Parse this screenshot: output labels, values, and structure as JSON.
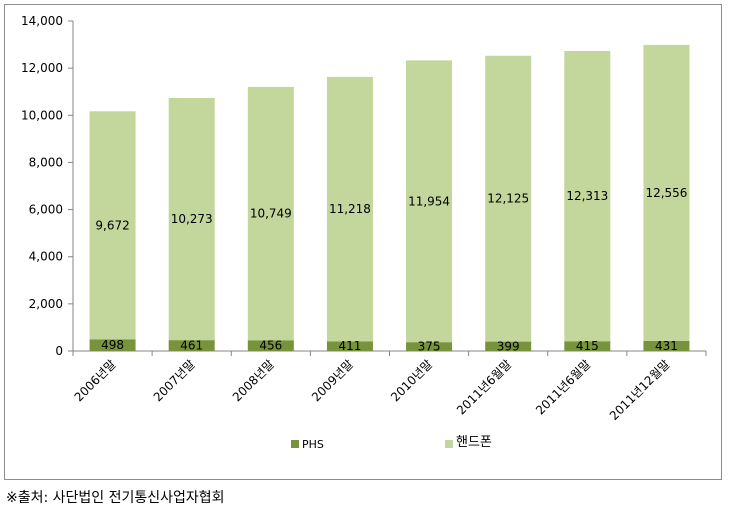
{
  "chart_data": {
    "type": "bar",
    "stacked": true,
    "categories": [
      "2006년말",
      "2007년말",
      "2008년말",
      "2009년말",
      "2010년말",
      "2011년6월말",
      "2011년6월말",
      "2011년12월말"
    ],
    "series": [
      {
        "name": "PHS",
        "values": [
          498,
          461,
          456,
          411,
          375,
          399,
          415,
          431
        ],
        "color": "#77933c"
      },
      {
        "name": "핸드폰",
        "values": [
          9672,
          10273,
          10749,
          11218,
          11954,
          12125,
          12313,
          12556
        ],
        "color": "#c3d69b"
      }
    ],
    "data_labels": {
      "PHS": [
        "498",
        "461",
        "456",
        "411",
        "375",
        "399",
        "415",
        "431"
      ],
      "핸드폰": [
        "9,672",
        "10,273",
        "10,749",
        "11,218",
        "11,954",
        "12,125",
        "12,313",
        "12,556"
      ]
    },
    "yticks": [
      "0",
      "2,000",
      "4,000",
      "6,000",
      "8,000",
      "10,000",
      "12,000",
      "14,000"
    ],
    "ylim": [
      0,
      14000
    ],
    "legend": "bottom",
    "grid": false
  },
  "source_note": "※출처: 사단법인 전기통신사업자협회"
}
